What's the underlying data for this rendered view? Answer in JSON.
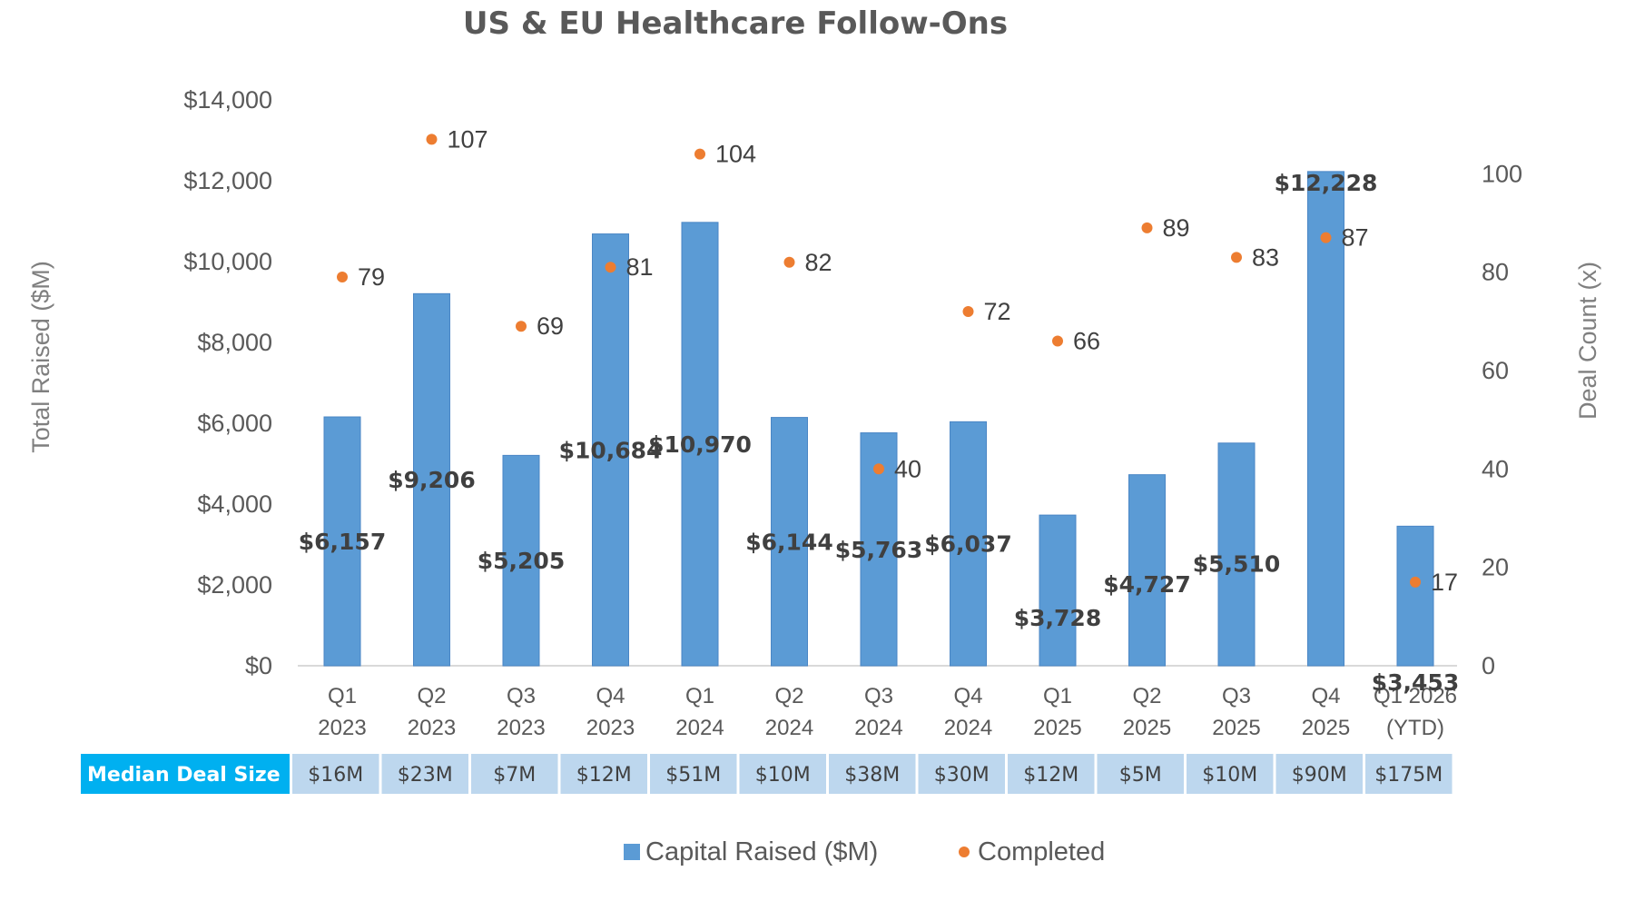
{
  "chart_data": {
    "type": "bar",
    "title": "US & EU Healthcare Follow-Ons",
    "categories": [
      [
        "Q1",
        "2023"
      ],
      [
        "Q2",
        "2023"
      ],
      [
        "Q3",
        "2023"
      ],
      [
        "Q4",
        "2023"
      ],
      [
        "Q1",
        "2024"
      ],
      [
        "Q2",
        "2024"
      ],
      [
        "Q3",
        "2024"
      ],
      [
        "Q4",
        "2024"
      ],
      [
        "Q1",
        "2025"
      ],
      [
        "Q2",
        "2025"
      ],
      [
        "Q3",
        "2025"
      ],
      [
        "Q4",
        "2025"
      ],
      [
        "Q1 2026",
        "(YTD)"
      ]
    ],
    "series": [
      {
        "name": "Capital Raised ($M)",
        "type": "bar",
        "axis": "left",
        "color": "#5b9bd5",
        "values": [
          6157,
          9206,
          5205,
          10684,
          10970,
          6144,
          5763,
          6037,
          3728,
          4727,
          5510,
          12228,
          3453
        ],
        "labels": [
          "$6,157",
          "$9,206",
          "$5,205",
          "$10,684",
          "$10,970",
          "$6,144",
          "$5,763",
          "$6,037",
          "$3,728",
          "$4,727",
          "$5,510",
          "$12,228",
          "$3,453"
        ]
      },
      {
        "name": "Completed",
        "type": "scatter",
        "axis": "right",
        "color": "#ed7d31",
        "values": [
          79,
          107,
          69,
          81,
          104,
          82,
          40,
          72,
          66,
          89,
          83,
          87,
          17
        ],
        "labels": [
          "79",
          "107",
          "69",
          "81",
          "104",
          "82",
          "40",
          "72",
          "66",
          "89",
          "83",
          "87",
          "17"
        ]
      }
    ],
    "ylabel": "Total Raised ($M)",
    "ylim": [
      0,
      14000
    ],
    "yticks": [
      "$0",
      "$2,000",
      "$4,000",
      "$6,000",
      "$8,000",
      "$10,000",
      "$12,000",
      "$14,000"
    ],
    "y2label": "Deal Count (x)",
    "y2lim": [
      0,
      115
    ],
    "y2ticks": [
      "0",
      "20",
      "40",
      "60",
      "80",
      "100"
    ],
    "grid": false,
    "legend_position": "bottom-center"
  },
  "table": {
    "header": "Median Deal Size",
    "header_color": "#00b0f0",
    "cell_color": "#bdd7ee",
    "values": [
      "$16M",
      "$23M",
      "$7M",
      "$12M",
      "$51M",
      "$10M",
      "$38M",
      "$30M",
      "$12M",
      "$5M",
      "$10M",
      "$90M",
      "$175M"
    ]
  },
  "legend": {
    "bar_label": "Capital Raised ($M)",
    "dot_label": "Completed"
  }
}
